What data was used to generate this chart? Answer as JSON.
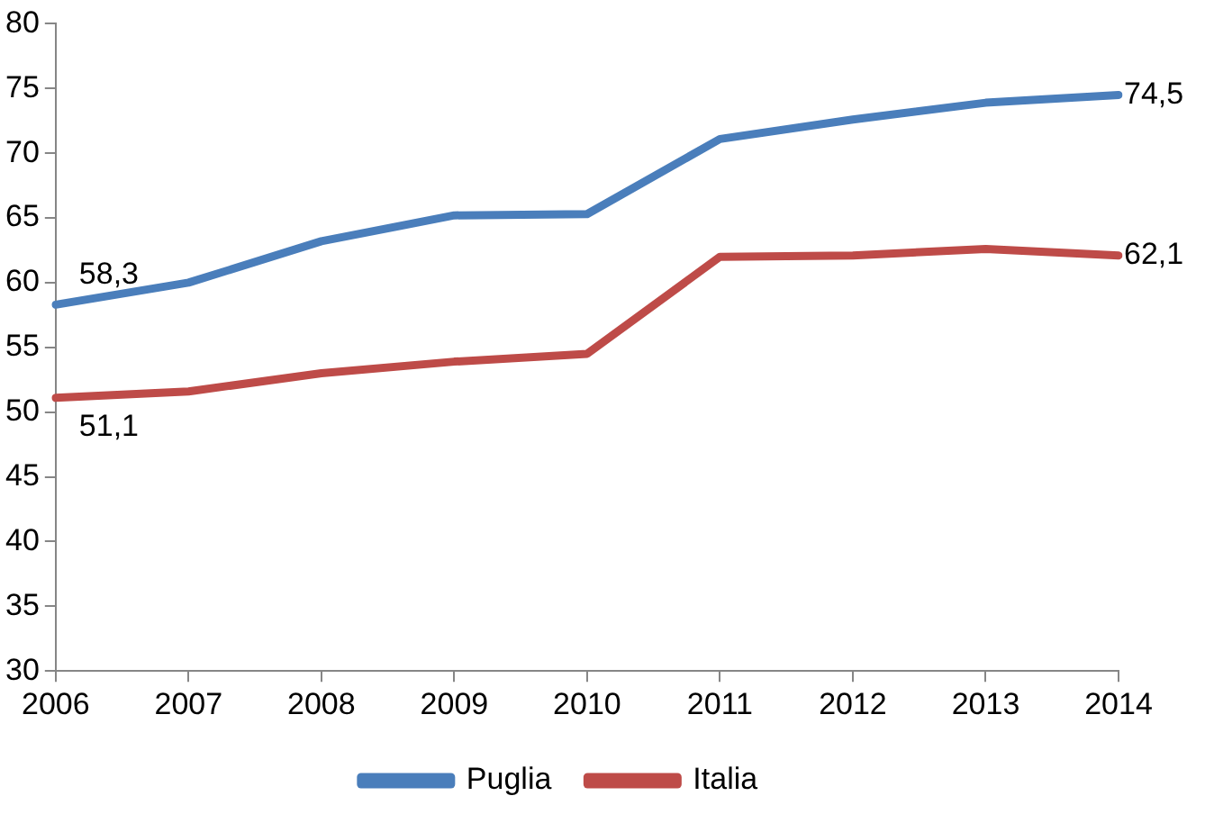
{
  "chart_data": {
    "type": "line",
    "categories": [
      "2006",
      "2007",
      "2008",
      "2009",
      "2010",
      "2011",
      "2012",
      "2013",
      "2014"
    ],
    "series": [
      {
        "name": "Puglia",
        "color": "#4a7ebb",
        "values": [
          58.3,
          60.0,
          63.2,
          65.2,
          65.3,
          71.1,
          72.6,
          73.9,
          74.5
        ],
        "value_labels": [
          "58,3",
          null,
          null,
          null,
          null,
          null,
          null,
          null,
          "74,5"
        ]
      },
      {
        "name": "Italia",
        "color": "#be4b48",
        "values": [
          51.1,
          51.6,
          53.0,
          53.9,
          54.5,
          62.0,
          62.1,
          62.6,
          62.1
        ],
        "value_labels": [
          "51,1",
          null,
          null,
          null,
          null,
          null,
          null,
          null,
          "62,1"
        ]
      }
    ],
    "ylim": [
      30,
      80
    ],
    "yticks": [
      30,
      35,
      40,
      45,
      50,
      55,
      60,
      65,
      70,
      75,
      80
    ],
    "grid": false,
    "legend": "bottom",
    "marker": "none",
    "line_style": "solid"
  }
}
